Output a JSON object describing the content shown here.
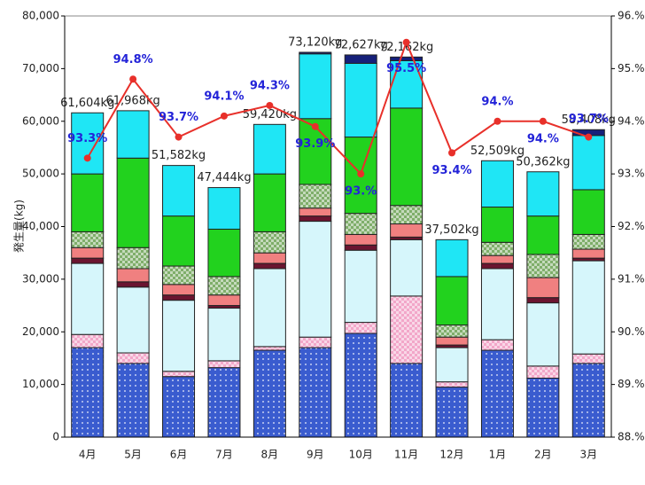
{
  "chart_data": {
    "type": "stacked-bar-line",
    "y_label": "発生量(kg)",
    "categories": [
      "4月",
      "5月",
      "6月",
      "7月",
      "8月",
      "9月",
      "10月",
      "11月",
      "12月",
      "1月",
      "2月",
      "3月"
    ],
    "series": [
      {
        "color": "#3a5ccf",
        "pattern": "dots",
        "values": [
          17000,
          14000,
          11500,
          13200,
          16500,
          17000,
          19700,
          14000,
          9500,
          16500,
          11200,
          14000
        ]
      },
      {
        "color": "#f2a7c9",
        "pattern": "checker",
        "values": [
          2500,
          2000,
          1000,
          1300,
          700,
          2000,
          2100,
          12800,
          1000,
          2000,
          2300,
          1800
        ]
      },
      {
        "color": "#d6f6fb",
        "values": [
          13500,
          12500,
          13500,
          10000,
          14800,
          22000,
          13700,
          10700,
          6500,
          13500,
          12000,
          17700
        ]
      },
      {
        "color": "#6b1530",
        "values": [
          1000,
          1000,
          1000,
          500,
          1000,
          1000,
          1000,
          500,
          500,
          1000,
          1000,
          500
        ]
      },
      {
        "color": "#f08080",
        "values": [
          2000,
          2500,
          2000,
          2000,
          2000,
          1500,
          2000,
          2500,
          1500,
          1500,
          3800,
          1700
        ]
      },
      {
        "color": "#7fae6a",
        "pattern": "checker",
        "values": [
          3000,
          4000,
          3500,
          3500,
          4000,
          4500,
          4000,
          3500,
          2300,
          2500,
          4400,
          2800
        ]
      },
      {
        "color": "#22d21e",
        "values": [
          11000,
          17000,
          9500,
          9000,
          11000,
          12500,
          14500,
          18500,
          9200,
          6700,
          7300,
          8500
        ]
      },
      {
        "color": "#1fe6f5",
        "values": [
          11600,
          9000,
          9600,
          7900,
          9400,
          12300,
          14000,
          9000,
          7000,
          8800,
          8400,
          10300
        ]
      },
      {
        "color": "#16207a",
        "values": [
          0,
          0,
          0,
          0,
          0,
          300,
          1600,
          700,
          0,
          0,
          0,
          1100
        ]
      },
      {
        "type": "line",
        "axis": "y2",
        "color": "#e8302a",
        "values": [
          93.3,
          94.8,
          93.7,
          94.1,
          94.3,
          93.9,
          93.0,
          95.5,
          93.4,
          94.0,
          94.0,
          93.7
        ],
        "value_labels": [
          "93.3%",
          "94.8%",
          "93.7%",
          "94.1%",
          "94.3%",
          "93.9%",
          "93.%",
          "95.5%",
          "93.4%",
          "94.%",
          "94.%",
          "93.7%"
        ]
      }
    ],
    "total_labels": [
      "61,604kg",
      "61,968kg",
      "51,582kg",
      "47,444kg",
      "59,420kg",
      "73,120kg",
      "72,627kg",
      "72,162kg",
      "37,502kg",
      "52,509kg",
      "50,362kg",
      "58,408kg"
    ],
    "ylim": [
      0,
      80000
    ],
    "yticks": [
      0,
      {
        "value": 10000,
        "label": "10,000"
      },
      {
        "value": 20000,
        "label": "20,000"
      },
      {
        "value": 30000,
        "label": "30,000"
      },
      {
        "value": 40000,
        "label": "40,000"
      },
      {
        "value": 50000,
        "label": "50,000"
      },
      {
        "value": 60000,
        "label": "60,000"
      },
      {
        "value": 70000,
        "label": "70,000"
      },
      {
        "value": 80000,
        "label": "80,000"
      }
    ],
    "y2lim": [
      88,
      96
    ],
    "y2ticks": [
      {
        "value": 88,
        "label": "88.%"
      },
      {
        "value": 89,
        "label": "89.%"
      },
      {
        "value": 90,
        "label": "90.%"
      },
      {
        "value": 91,
        "label": "91.%"
      },
      {
        "value": 92,
        "label": "92.%"
      },
      {
        "value": 93,
        "label": "93.%"
      },
      {
        "value": 94,
        "label": "94.%"
      },
      {
        "value": 95,
        "label": "95.%"
      },
      {
        "value": 96,
        "label": "96.%"
      }
    ]
  }
}
